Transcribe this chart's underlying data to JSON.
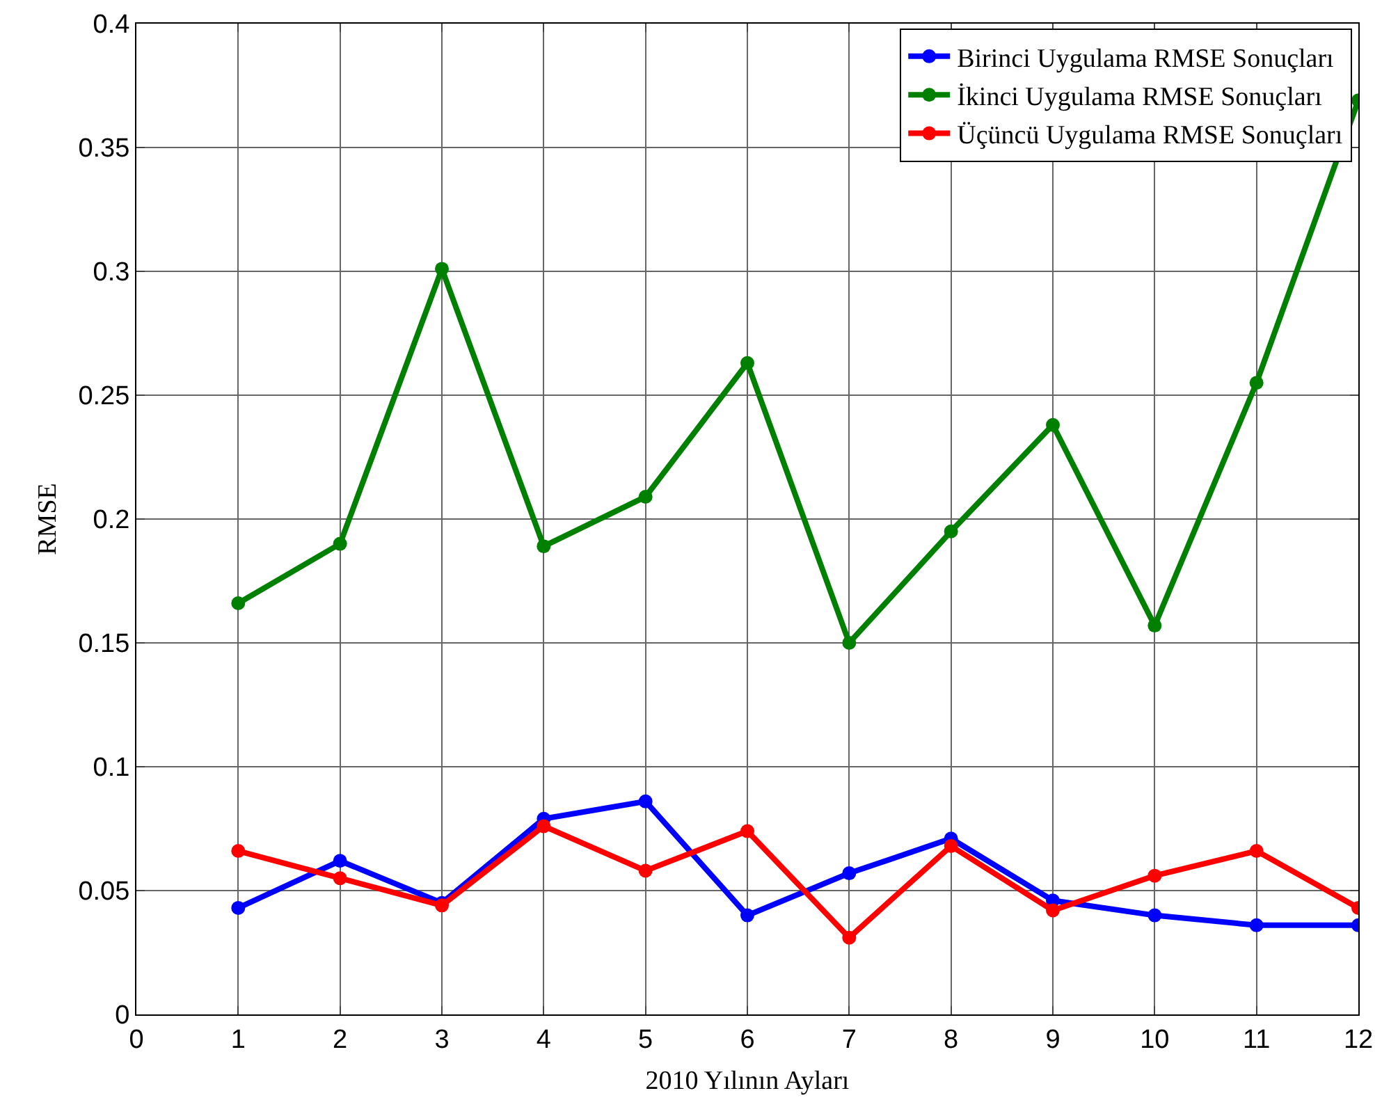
{
  "chart_data": {
    "type": "line",
    "xlabel": "2010 Yılının Ayları",
    "ylabel": "RMSE",
    "x": [
      1,
      2,
      3,
      4,
      5,
      6,
      7,
      8,
      9,
      10,
      11,
      12
    ],
    "series": [
      {
        "name": "Birinci Uygulama RMSE Sonuçları",
        "color": "#0000ff",
        "values": [
          0.043,
          0.062,
          0.045,
          0.079,
          0.086,
          0.04,
          0.057,
          0.071,
          0.046,
          0.04,
          0.036,
          0.036
        ]
      },
      {
        "name": "İkinci Uygulama RMSE Sonuçları",
        "color": "#008000",
        "values": [
          0.166,
          0.19,
          0.301,
          0.189,
          0.209,
          0.263,
          0.15,
          0.195,
          0.238,
          0.157,
          0.255,
          0.369
        ]
      },
      {
        "name": "Üçüncü Uygulama RMSE Sonuçları",
        "color": "#ff0000",
        "values": [
          0.066,
          0.055,
          0.044,
          0.076,
          0.058,
          0.074,
          0.031,
          0.068,
          0.042,
          0.056,
          0.066,
          0.043
        ]
      }
    ],
    "xlim": [
      0,
      12
    ],
    "xticks": [
      0,
      1,
      2,
      3,
      4,
      5,
      6,
      7,
      8,
      9,
      10,
      11,
      12
    ],
    "ylim": [
      0,
      0.4
    ],
    "yticks": [
      0,
      0.05,
      0.1,
      0.15,
      0.2,
      0.25,
      0.3,
      0.35,
      0.4
    ],
    "grid": true,
    "legend": "top right",
    "marker": "circle",
    "line_style": "solid"
  }
}
